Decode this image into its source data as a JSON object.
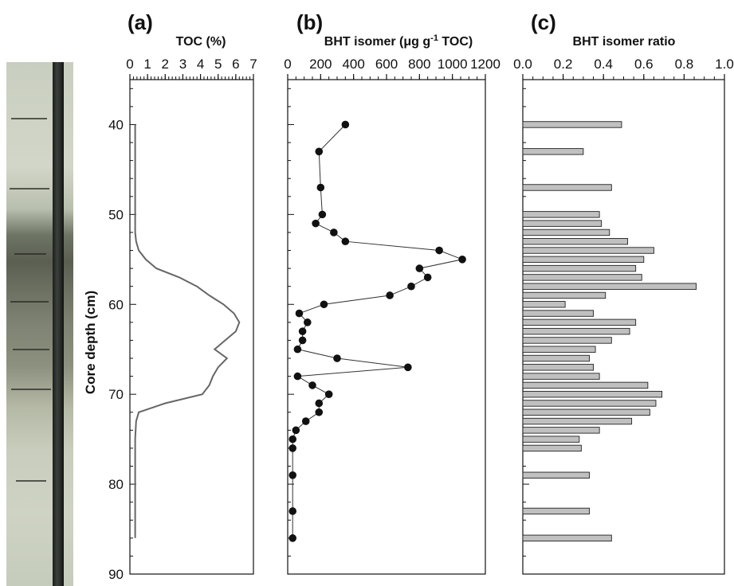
{
  "chart_data": [
    {
      "panel": "(a)",
      "type": "line",
      "title": "TOC (%)",
      "xlim": [
        0,
        7
      ],
      "x_ticks": [
        "0",
        "1",
        "2",
        "3",
        "4",
        "5",
        "6",
        "7"
      ],
      "y_axis_label": "Core depth (cm)",
      "ylim": [
        90,
        35
      ],
      "y_ticks": [
        "40",
        "50",
        "60",
        "70",
        "80",
        "90"
      ],
      "series": [
        {
          "x": [
            0.3,
            0.3,
            0.3,
            0.3,
            0.35,
            0.5,
            0.9,
            1.5,
            2.8,
            3.8,
            4.5,
            5.3,
            5.9,
            6.2,
            6.0,
            5.4,
            4.8,
            5.5,
            5.0,
            4.7,
            4.5,
            4.1,
            2.0,
            0.5,
            0.35,
            0.3,
            0.3,
            0.3,
            0.3,
            0.3
          ],
          "y": [
            40,
            45,
            50,
            52,
            53,
            54,
            55,
            56,
            57,
            58,
            59,
            60,
            61,
            62,
            63,
            64,
            65,
            66,
            67,
            68,
            69,
            70,
            71,
            72,
            73,
            75,
            78,
            80,
            84,
            86
          ]
        }
      ]
    },
    {
      "panel": "(b)",
      "type": "scatter",
      "title": "BHT isomer (μg g",
      "title_sup": "-1",
      "title_rest": " TOC)",
      "xlim": [
        0,
        1200
      ],
      "x_ticks": [
        "0",
        "200",
        "400",
        "600",
        "800",
        "1000",
        "1200"
      ],
      "ylim": [
        90,
        35
      ],
      "series": [
        {
          "x": [
            350,
            190,
            200,
            210,
            170,
            280,
            350,
            920,
            1060,
            800,
            850,
            750,
            620,
            220,
            70,
            120,
            90,
            90,
            60,
            300,
            730,
            60,
            150,
            250,
            190,
            190,
            110,
            50,
            30,
            30,
            30,
            30,
            30
          ],
          "y": [
            40,
            43,
            47,
            50,
            51,
            52,
            53,
            54,
            55,
            56,
            57,
            58,
            59,
            60,
            61,
            62,
            63,
            64,
            65,
            66,
            67,
            68,
            69,
            70,
            71,
            72,
            73,
            74,
            75,
            76,
            79,
            83,
            86
          ]
        }
      ]
    },
    {
      "panel": "(c)",
      "type": "bar",
      "orientation": "horizontal",
      "title": "BHT isomer ratio",
      "xlim": [
        0,
        1.0
      ],
      "x_ticks": [
        "0.0",
        "0.2",
        "0.4",
        "0.6",
        "0.8",
        "1.0"
      ],
      "ylim": [
        90,
        35
      ],
      "bar_color": "#c0c0c0",
      "series": [
        {
          "y": [
            40,
            43,
            47,
            50,
            51,
            52,
            53,
            54,
            55,
            56,
            57,
            58,
            59,
            60,
            61,
            62,
            63,
            64,
            65,
            66,
            67,
            68,
            69,
            70,
            71,
            72,
            73,
            74,
            75,
            76,
            79,
            83,
            86
          ],
          "values": [
            0.49,
            0.3,
            0.44,
            0.38,
            0.39,
            0.43,
            0.52,
            0.65,
            0.6,
            0.56,
            0.59,
            0.86,
            0.41,
            0.21,
            0.35,
            0.56,
            0.53,
            0.44,
            0.36,
            0.33,
            0.35,
            0.38,
            0.62,
            0.69,
            0.66,
            0.63,
            0.54,
            0.38,
            0.28,
            0.29,
            0.33,
            0.33,
            0.44
          ]
        }
      ]
    }
  ],
  "colors": {
    "toc_line": "#666666",
    "points": "#111111",
    "bars": "#c0c0c0",
    "axes": "#111111"
  }
}
